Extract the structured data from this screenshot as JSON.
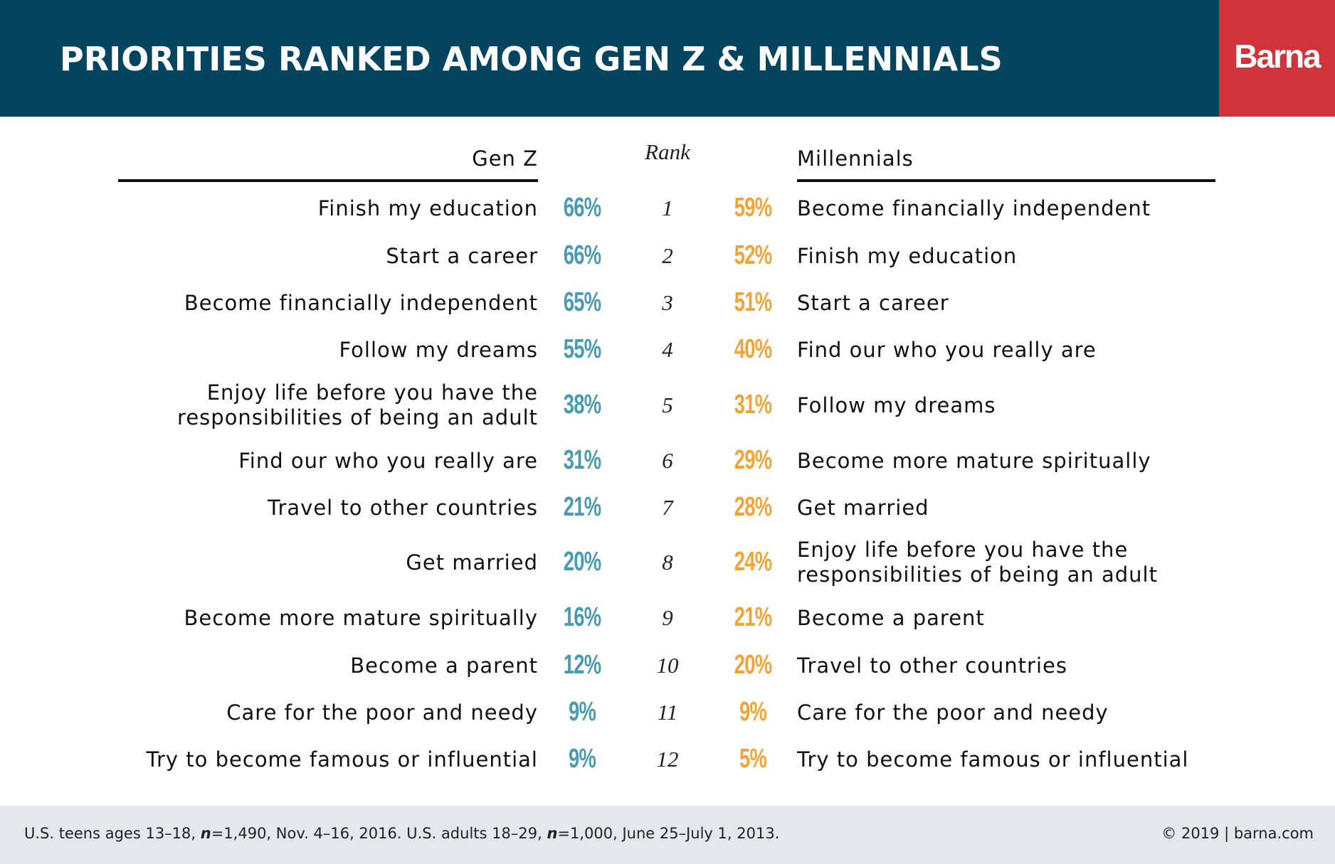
{
  "header": {
    "title": "PRIORITIES RANKED AMONG GEN Z & MILLENNIALS",
    "logo": "Barna"
  },
  "columns": {
    "left": "Gen Z",
    "middle": "Rank",
    "right": "Millennials"
  },
  "rows": [
    {
      "rank": "1",
      "genz_label": "Finish my education",
      "genz_pct": "66%",
      "mill_pct": "59%",
      "mill_label": "Become financially independent"
    },
    {
      "rank": "2",
      "genz_label": "Start a career",
      "genz_pct": "66%",
      "mill_pct": "52%",
      "mill_label": "Finish my education"
    },
    {
      "rank": "3",
      "genz_label": "Become financially independent",
      "genz_pct": "65%",
      "mill_pct": "51%",
      "mill_label": "Start a career"
    },
    {
      "rank": "4",
      "genz_label": "Follow my dreams",
      "genz_pct": "55%",
      "mill_pct": "40%",
      "mill_label": "Find our who you really are"
    },
    {
      "rank": "5",
      "genz_label": [
        "Enjoy life before you have the",
        "responsibilities of being an adult"
      ],
      "genz_pct": "38%",
      "mill_pct": "31%",
      "mill_label": "Follow my dreams"
    },
    {
      "rank": "6",
      "genz_label": "Find our who you really are",
      "genz_pct": "31%",
      "mill_pct": "29%",
      "mill_label": "Become more mature spiritually"
    },
    {
      "rank": "7",
      "genz_label": "Travel to other countries",
      "genz_pct": "21%",
      "mill_pct": "28%",
      "mill_label": "Get married"
    },
    {
      "rank": "8",
      "genz_label": "Get married",
      "genz_pct": "20%",
      "mill_pct": "24%",
      "mill_label": [
        "Enjoy life before you have the",
        "responsibilities of being an adult"
      ]
    },
    {
      "rank": "9",
      "genz_label": "Become more mature spiritually",
      "genz_pct": "16%",
      "mill_pct": "21%",
      "mill_label": "Become a parent"
    },
    {
      "rank": "10",
      "genz_label": "Become a parent",
      "genz_pct": "12%",
      "mill_pct": "20%",
      "mill_label": "Travel to other countries"
    },
    {
      "rank": "11",
      "genz_label": "Care for the poor and needy",
      "genz_pct": "9%",
      "mill_pct": "9%",
      "mill_label": "Care for the poor and needy"
    },
    {
      "rank": "12",
      "genz_label": "Try to become famous or influential",
      "genz_pct": "9%",
      "mill_pct": "5%",
      "mill_label": "Try to become famous or influential"
    }
  ],
  "footer": {
    "source": [
      "U.S. teens ages 13–18, ",
      "n",
      "=1,490, Nov. 4–16, 2016. U.S. adults 18–29, ",
      "n",
      "=1,000, June 25–July 1, 2013."
    ],
    "copyright": "© 2019 | barna.com"
  }
}
